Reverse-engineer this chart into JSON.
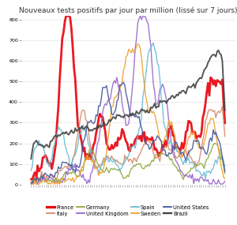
{
  "title": "Nouveaux tests positifs par jour par million (lissé sur 7 jours)",
  "title_fontsize": 6.5,
  "ylim": [
    0,
    820
  ],
  "yticks": [
    0,
    100,
    200,
    300,
    400,
    500,
    600,
    700,
    800
  ],
  "background_color": "#ffffff",
  "grid_color": "#dddddd",
  "legend": [
    {
      "label": "France",
      "color": "#e8000a",
      "lw": 2.0
    },
    {
      "label": "Italy",
      "color": "#d4896a",
      "lw": 1.0
    },
    {
      "label": "Germany",
      "color": "#8faa3b",
      "lw": 1.0
    },
    {
      "label": "United Kingdom",
      "color": "#9966cc",
      "lw": 1.0
    },
    {
      "label": "Spain",
      "color": "#6bbbd4",
      "lw": 1.0
    },
    {
      "label": "Sweden",
      "color": "#f0a030",
      "lw": 1.0
    },
    {
      "label": "United States",
      "color": "#445599",
      "lw": 1.0
    },
    {
      "label": "Brazil",
      "color": "#444444",
      "lw": 1.4
    }
  ],
  "n_points": 150
}
